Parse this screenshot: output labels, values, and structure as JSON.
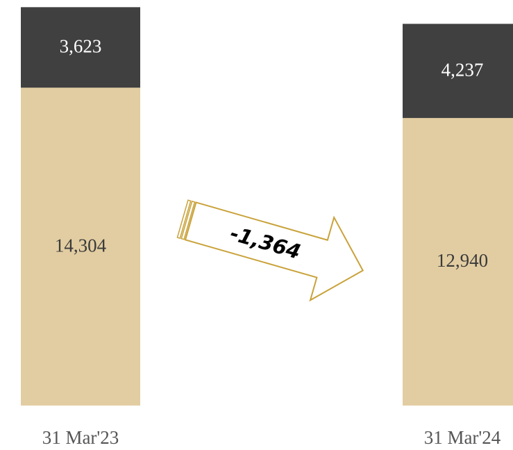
{
  "chart_data": {
    "type": "stacked-bar",
    "categories": [
      "31 Mar'23",
      "31 Mar'24"
    ],
    "series": [
      {
        "color": "#e2cda2",
        "values": [
          14304,
          12940
        ],
        "value_labels": [
          "14,304",
          "12,940"
        ],
        "label_color": "#3a3a3a"
      },
      {
        "color": "#404040",
        "values": [
          3623,
          4237
        ],
        "value_labels": [
          "3,623",
          "4,237"
        ],
        "label_color": "#ffffff"
      }
    ],
    "annotation": "-1,364",
    "ylim": [
      0,
      18250
    ]
  }
}
